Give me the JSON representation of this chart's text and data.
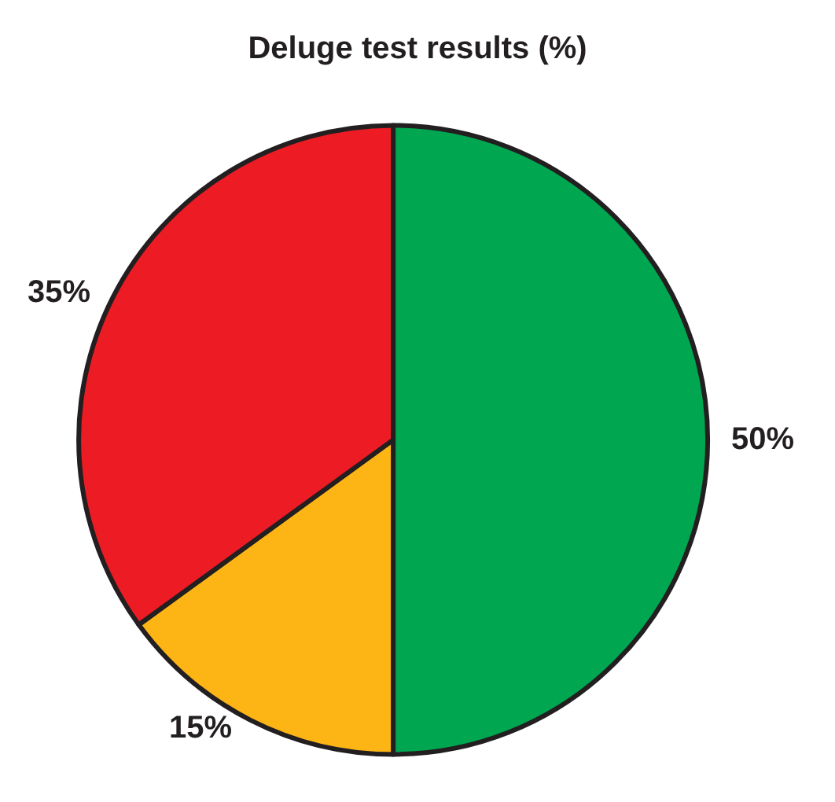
{
  "chart_data": {
    "type": "pie",
    "title": "Deluge test results (%)",
    "categories": [
      null,
      null,
      null
    ],
    "values": [
      50,
      15,
      35
    ],
    "colors": [
      "#00a650",
      "#fdb515",
      "#ed1c24"
    ],
    "value_labels": [
      "50%",
      "15%",
      "35%"
    ]
  }
}
